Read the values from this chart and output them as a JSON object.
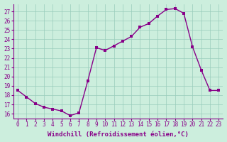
{
  "hours": [
    0,
    1,
    2,
    3,
    4,
    5,
    6,
    7,
    8,
    9,
    10,
    11,
    12,
    13,
    14,
    15,
    16,
    17,
    18,
    19,
    20,
    21,
    22,
    23
  ],
  "temps": [
    18.5,
    17.8,
    17.1,
    16.7,
    16.5,
    16.3,
    15.8,
    16.1,
    19.5,
    23.1,
    22.8,
    23.3,
    23.8,
    24.3,
    25.3,
    25.7,
    26.5,
    27.2,
    27.3,
    26.8,
    23.2,
    20.7,
    18.5,
    18.5
  ],
  "color": "#880088",
  "bg_color": "#cceedd",
  "grid_color": "#99ccbb",
  "xlabel": "Windchill (Refroidissement éolien,°C)",
  "ylim": [
    15.5,
    27.8
  ],
  "yticks": [
    16,
    17,
    18,
    19,
    20,
    21,
    22,
    23,
    24,
    25,
    26,
    27
  ],
  "xlim": [
    -0.5,
    23.5
  ],
  "xticks": [
    0,
    1,
    2,
    3,
    4,
    5,
    6,
    7,
    8,
    9,
    10,
    11,
    12,
    13,
    14,
    15,
    16,
    17,
    18,
    19,
    20,
    21,
    22,
    23
  ],
  "xlabel_fontsize": 6.5,
  "tick_fontsize": 5.5,
  "linewidth": 1.0,
  "markersize": 2.5,
  "figsize": [
    3.2,
    2.0
  ],
  "dpi": 100
}
